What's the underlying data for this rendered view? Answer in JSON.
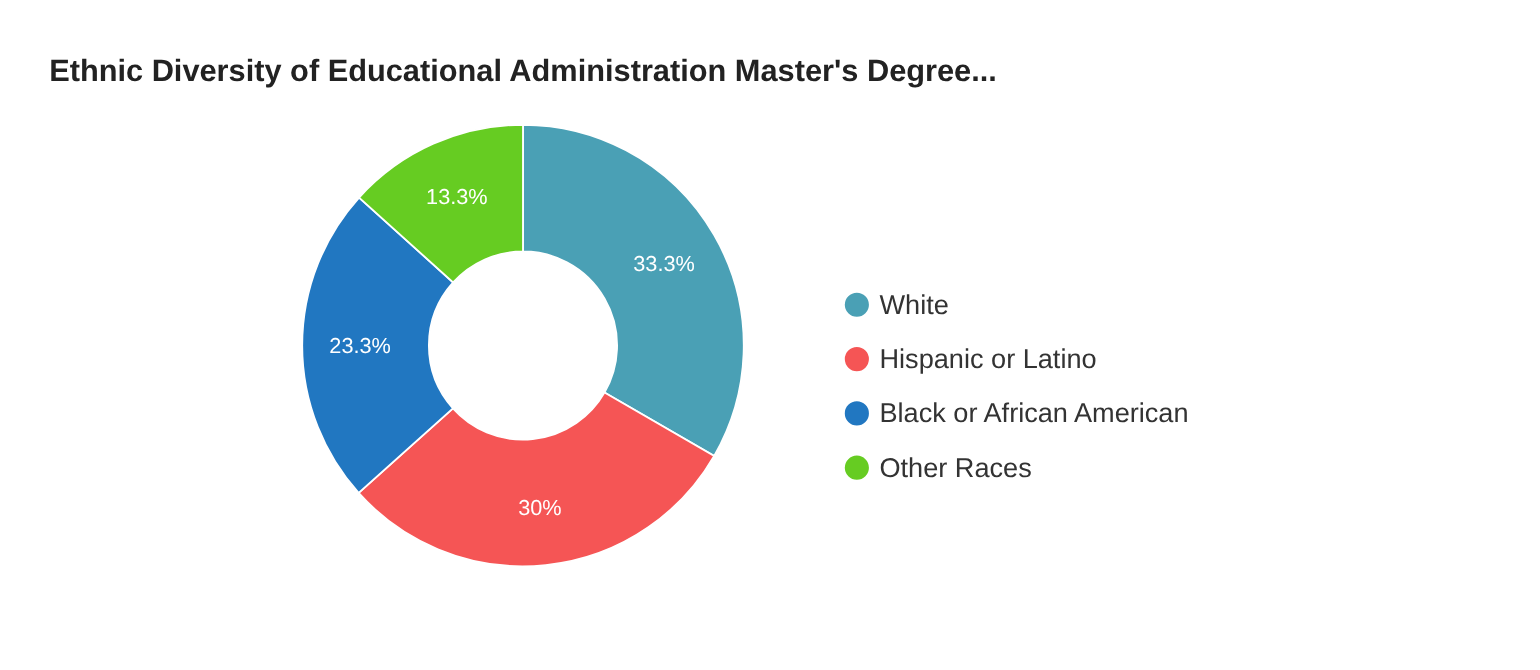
{
  "chart_data": {
    "type": "donut",
    "title": "Ethnic Diversity of Educational Administration Master's Degree...",
    "categories": [
      "White",
      "Hispanic or Latino",
      "Black or African American",
      "Other Races"
    ],
    "values": [
      33.3,
      30,
      23.3,
      13.3
    ],
    "colors": [
      "#4aa0b5",
      "#f55555",
      "#2177c1",
      "#66cc22"
    ],
    "value_labels": [
      "33.3%",
      "30%",
      "23.3%",
      "13.3%"
    ],
    "legend": "right"
  }
}
